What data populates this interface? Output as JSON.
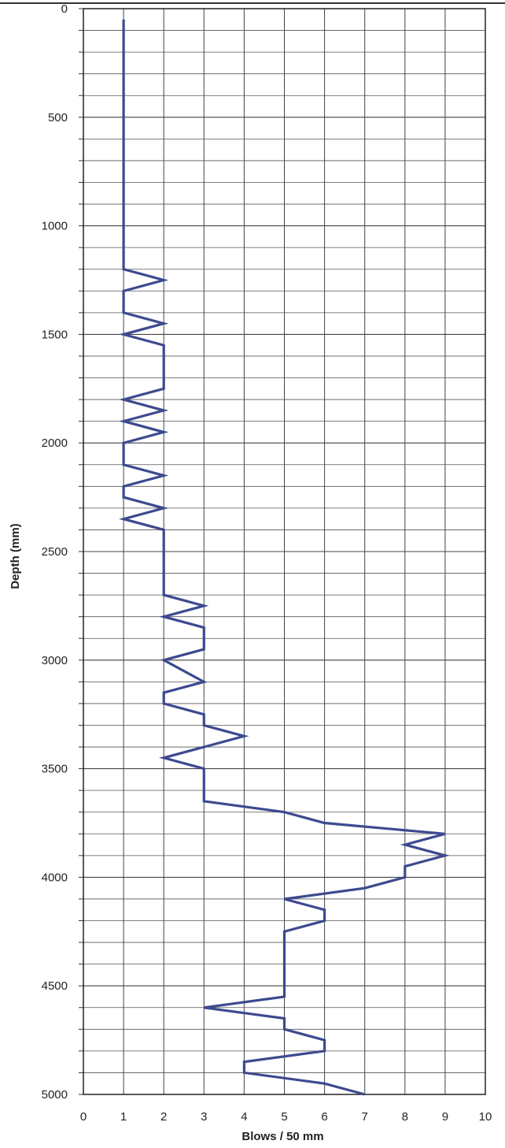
{
  "chart_data": {
    "type": "line",
    "title": "",
    "xlabel": "Blows / 50 mm",
    "ylabel": "Depth (mm)",
    "xlim": [
      0,
      10
    ],
    "ylim": [
      0,
      5000
    ],
    "y_inverted": true,
    "x_ticks": [
      "0",
      "1",
      "2",
      "3",
      "4",
      "5",
      "6",
      "7",
      "8",
      "9",
      "10"
    ],
    "y_ticks": [
      "0",
      "500",
      "1000",
      "1500",
      "2000",
      "2500",
      "3000",
      "3500",
      "4000",
      "4500",
      "5000"
    ],
    "grid": true,
    "line_color": "#3d4a8f",
    "series": [
      {
        "x": [
          1,
          1,
          2,
          1,
          1,
          2,
          1,
          2,
          2,
          1,
          2,
          1,
          2,
          1,
          1,
          2,
          1,
          1,
          2,
          1,
          2,
          2,
          3,
          2,
          3,
          3,
          2,
          3,
          2,
          2,
          3,
          3,
          4,
          2,
          3,
          3,
          5,
          6,
          9,
          8,
          9,
          8,
          8,
          7,
          5,
          6,
          6,
          5,
          5,
          3,
          5,
          5,
          6,
          6,
          4,
          4,
          6,
          7
        ],
        "y": [
          50,
          1200,
          1250,
          1300,
          1400,
          1450,
          1500,
          1550,
          1750,
          1800,
          1850,
          1900,
          1950,
          2000,
          2100,
          2150,
          2200,
          2250,
          2300,
          2350,
          2400,
          2700,
          2750,
          2800,
          2850,
          2950,
          3000,
          3100,
          3150,
          3200,
          3250,
          3300,
          3350,
          3450,
          3500,
          3650,
          3700,
          3750,
          3800,
          3850,
          3900,
          3950,
          4000,
          4050,
          4100,
          4150,
          4200,
          4250,
          4550,
          4600,
          4650,
          4700,
          4750,
          4800,
          4850,
          4900,
          4950,
          5000
        ]
      }
    ]
  }
}
